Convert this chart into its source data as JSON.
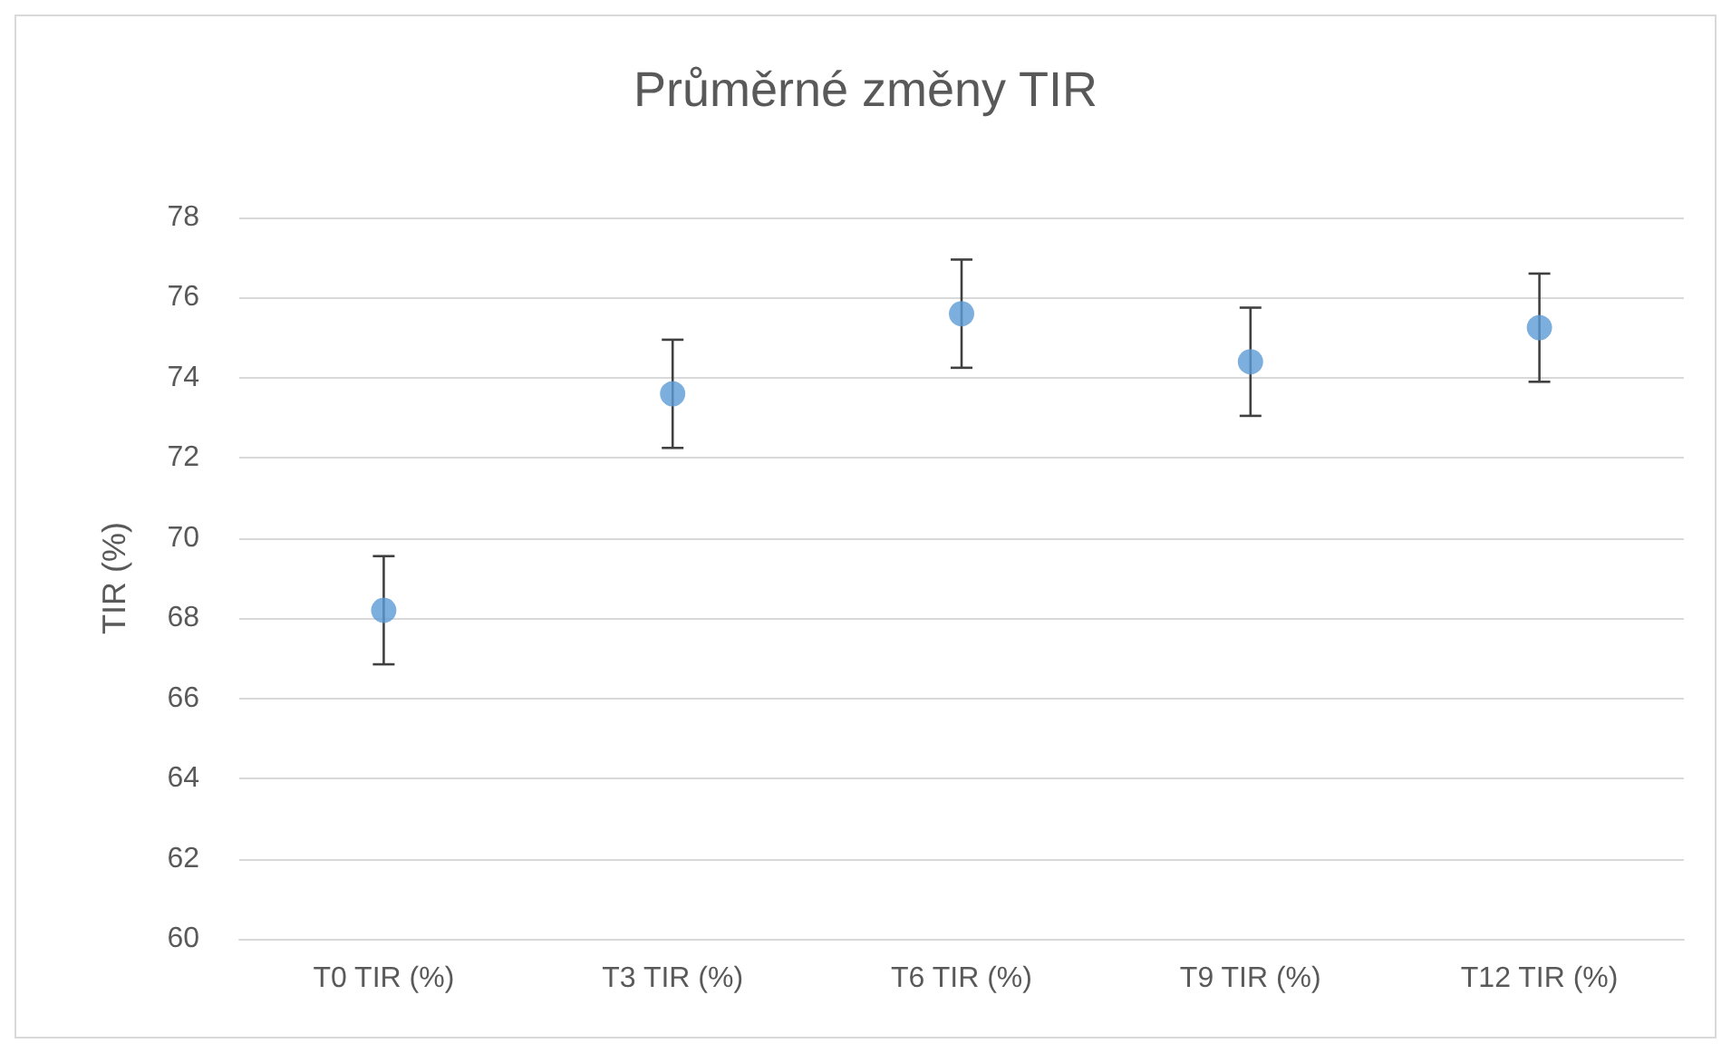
{
  "chart_data": {
    "type": "scatter",
    "title": "Průměrné změny TIR",
    "ylabel": "TIR (%)",
    "categories": [
      "T0 TIR (%)",
      "T3 TIR (%)",
      "T6 TIR (%)",
      "T9 TIR (%)",
      "T12 TIR (%)"
    ],
    "values": [
      68.2,
      73.6,
      75.6,
      74.4,
      75.25
    ],
    "errors": [
      1.35,
      1.35,
      1.35,
      1.35,
      1.35
    ],
    "color": "#5b9bd5",
    "marker": "circle",
    "ylim": [
      60,
      78
    ],
    "yticks": [
      60,
      62,
      64,
      66,
      68,
      70,
      72,
      74,
      76,
      78
    ],
    "grid": "y"
  }
}
